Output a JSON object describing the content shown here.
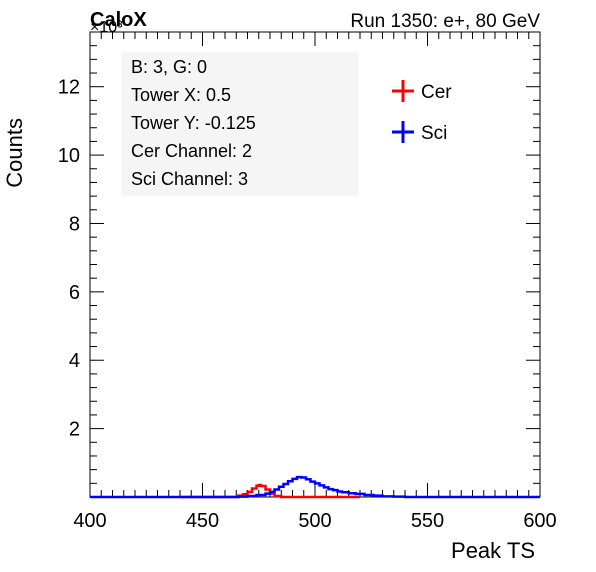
{
  "header": {
    "logo": "CaloX",
    "multiplier": "×10³",
    "run_info": "Run 1350: e+, 80 GeV"
  },
  "info_box": {
    "lines": [
      "B: 3, G: 0",
      "Tower X: 0.5",
      "Tower Y: -0.125",
      "Cer Channel: 2",
      "Sci Channel: 3"
    ]
  },
  "colors": {
    "cer": "#ff0000",
    "sci": "#0000ff",
    "axis": "#000000",
    "info_box_bg": "#f5f5f5"
  },
  "chart_data": {
    "type": "line",
    "xlabel": "Peak TS",
    "ylabel": "Counts",
    "xlim": [
      400,
      600
    ],
    "ylim": [
      0,
      13.6
    ],
    "y_scale_note": "×10³",
    "x_ticks": [
      400,
      450,
      500,
      550,
      600
    ],
    "y_ticks": [
      2,
      4,
      6,
      8,
      10,
      12
    ],
    "legend_position": "top-right",
    "series": [
      {
        "name": "Cer",
        "color": "#ff0000",
        "points": [
          [
            440,
            0
          ],
          [
            462,
            0
          ],
          [
            466,
            0.04
          ],
          [
            468,
            0.08
          ],
          [
            470,
            0.15
          ],
          [
            472,
            0.25
          ],
          [
            474,
            0.33
          ],
          [
            475,
            0.35
          ],
          [
            476,
            0.32
          ],
          [
            478,
            0.22
          ],
          [
            480,
            0.1
          ],
          [
            482,
            0.03
          ],
          [
            485,
            0
          ],
          [
            520,
            0
          ]
        ]
      },
      {
        "name": "Sci",
        "color": "#0000ff",
        "points": [
          [
            400,
            0
          ],
          [
            460,
            0
          ],
          [
            466,
            0.01
          ],
          [
            470,
            0.03
          ],
          [
            474,
            0.06
          ],
          [
            478,
            0.1
          ],
          [
            480,
            0.15
          ],
          [
            482,
            0.22
          ],
          [
            484,
            0.3
          ],
          [
            486,
            0.38
          ],
          [
            488,
            0.46
          ],
          [
            490,
            0.53
          ],
          [
            492,
            0.58
          ],
          [
            494,
            0.57
          ],
          [
            496,
            0.52
          ],
          [
            498,
            0.45
          ],
          [
            500,
            0.4
          ],
          [
            502,
            0.34
          ],
          [
            504,
            0.28
          ],
          [
            506,
            0.23
          ],
          [
            508,
            0.2
          ],
          [
            510,
            0.16
          ],
          [
            512,
            0.14
          ],
          [
            515,
            0.11
          ],
          [
            518,
            0.09
          ],
          [
            522,
            0.06
          ],
          [
            526,
            0.04
          ],
          [
            530,
            0.02
          ],
          [
            535,
            0.01
          ],
          [
            540,
            0
          ],
          [
            600,
            0
          ]
        ]
      }
    ]
  }
}
